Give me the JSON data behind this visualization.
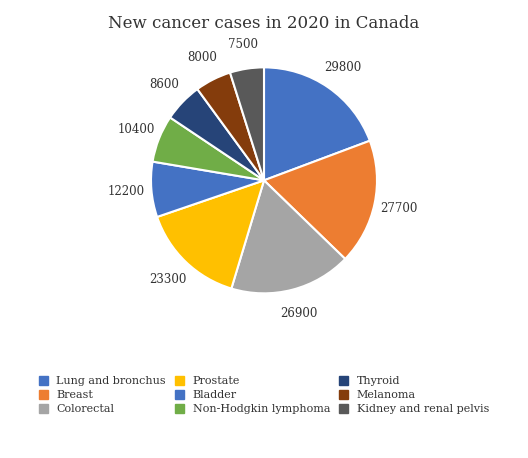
{
  "title": "New cancer cases in 2020 in Canada",
  "labels": [
    "Lung and bronchus",
    "Breast",
    "Colorectal",
    "Prostate",
    "Bladder",
    "Non-Hodgkin lymphoma",
    "Thyroid",
    "Melanoma",
    "Kidney and renal pelvis"
  ],
  "values": [
    29800,
    27700,
    26900,
    23300,
    12200,
    10400,
    8600,
    8000,
    7500
  ],
  "colors": [
    "#4472C4",
    "#ED7D31",
    "#A5A5A5",
    "#FFC000",
    "#4472C4",
    "#70AD47",
    "#264478",
    "#843C0C",
    "#595959"
  ],
  "title_fontsize": 12,
  "label_fontsize": 8.5,
  "legend_fontsize": 8.0
}
